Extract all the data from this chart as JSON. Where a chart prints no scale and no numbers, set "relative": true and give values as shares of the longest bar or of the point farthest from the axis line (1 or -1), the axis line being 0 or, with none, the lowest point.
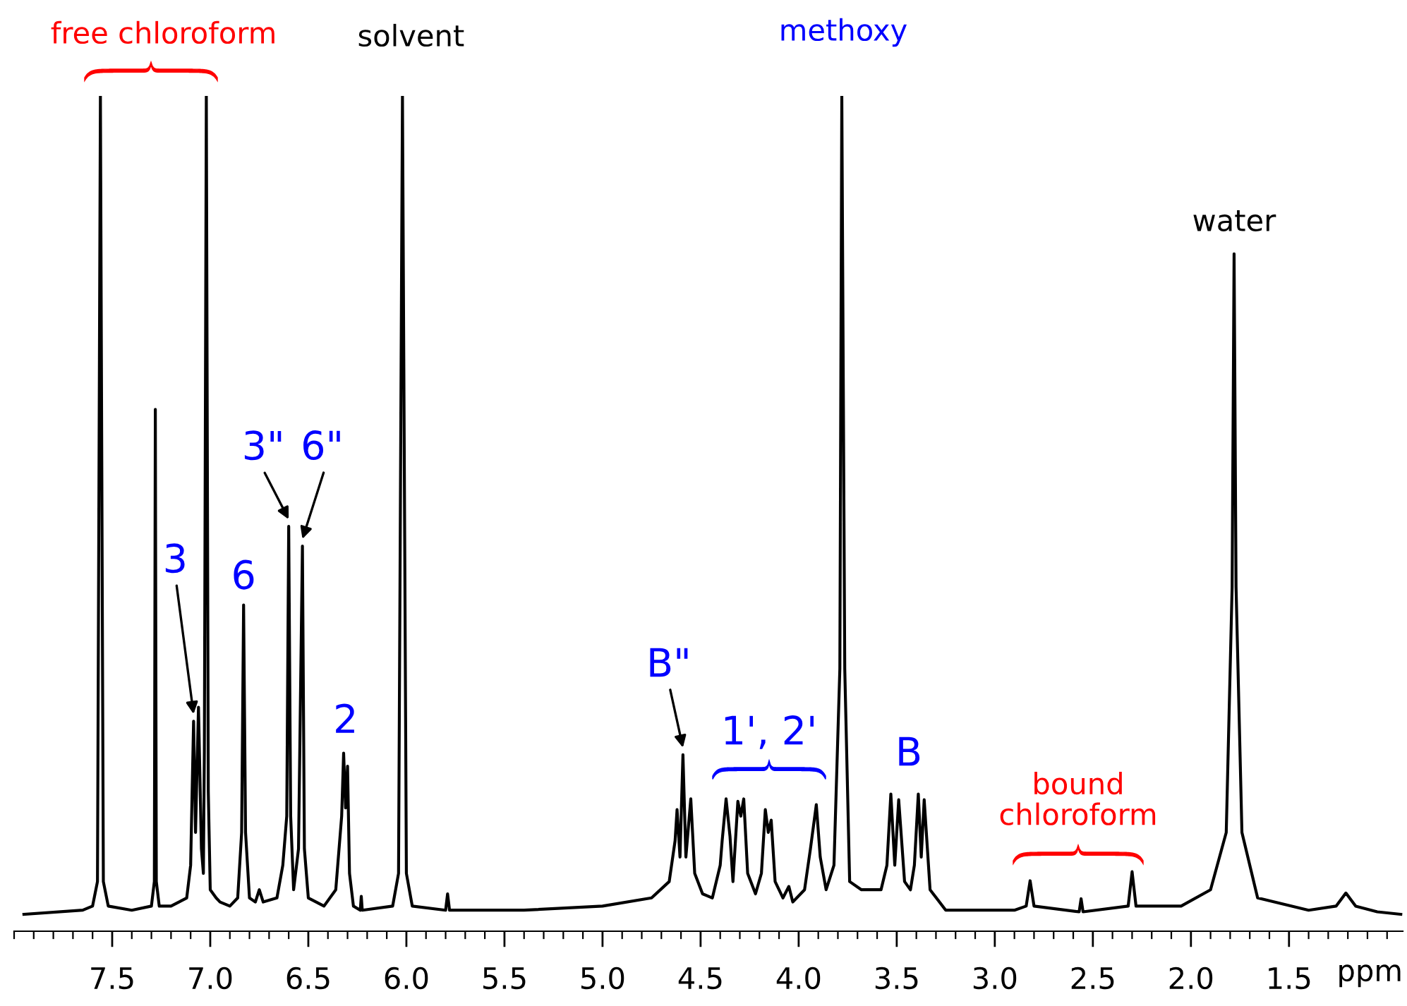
{
  "chart_data": {
    "type": "line",
    "relative": true,
    "xlabel": "ppm",
    "x": [
      7.95,
      7.65,
      7.6,
      7.575,
      7.56,
      7.545,
      7.52,
      7.4,
      7.3,
      7.285,
      7.28,
      7.275,
      7.26,
      7.2,
      7.12,
      7.1,
      7.085,
      7.075,
      7.06,
      7.045,
      7.035,
      7.03,
      7.02,
      7.01,
      7.0,
      6.97,
      6.95,
      6.9,
      6.86,
      6.84,
      6.83,
      6.82,
      6.8,
      6.77,
      6.75,
      6.73,
      6.66,
      6.63,
      6.61,
      6.6,
      6.59,
      6.575,
      6.55,
      6.53,
      6.52,
      6.5,
      6.42,
      6.36,
      6.33,
      6.32,
      6.31,
      6.3,
      6.29,
      6.27,
      6.235,
      6.23,
      6.225,
      6.07,
      6.04,
      6.02,
      6.0,
      5.97,
      5.8,
      5.79,
      5.78,
      5.4,
      5.0,
      4.75,
      4.66,
      4.63,
      4.62,
      4.605,
      4.59,
      4.575,
      4.55,
      4.53,
      4.49,
      4.44,
      4.4,
      4.39,
      4.37,
      4.35,
      4.335,
      4.31,
      4.295,
      4.28,
      4.26,
      4.22,
      4.19,
      4.17,
      4.155,
      4.14,
      4.12,
      4.08,
      4.05,
      4.03,
      3.97,
      3.94,
      3.91,
      3.89,
      3.86,
      3.82,
      3.79,
      3.78,
      3.765,
      3.74,
      3.68,
      3.58,
      3.55,
      3.53,
      3.51,
      3.49,
      3.46,
      3.43,
      3.41,
      3.39,
      3.375,
      3.36,
      3.33,
      3.25,
      2.9,
      2.84,
      2.82,
      2.8,
      2.57,
      2.56,
      2.55,
      2.32,
      2.3,
      2.28,
      2.05,
      1.9,
      1.82,
      1.79,
      1.78,
      1.77,
      1.74,
      1.66,
      1.4,
      1.26,
      1.21,
      1.16,
      1.05,
      0.93
    ],
    "series": [
      {
        "color": "#000000",
        "values": [
          0.0,
          0.005,
          0.01,
          0.04,
          1.0,
          0.04,
          0.01,
          0.005,
          0.01,
          0.04,
          0.617,
          0.04,
          0.01,
          0.01,
          0.02,
          0.06,
          0.236,
          0.1,
          0.253,
          0.08,
          0.05,
          0.2,
          1.0,
          0.15,
          0.03,
          0.02,
          0.015,
          0.01,
          0.02,
          0.1,
          0.378,
          0.1,
          0.02,
          0.015,
          0.03,
          0.015,
          0.02,
          0.06,
          0.12,
          0.474,
          0.12,
          0.03,
          0.08,
          0.45,
          0.08,
          0.02,
          0.01,
          0.03,
          0.12,
          0.197,
          0.13,
          0.181,
          0.05,
          0.01,
          0.005,
          0.022,
          0.005,
          0.01,
          0.05,
          1.0,
          0.05,
          0.01,
          0.005,
          0.025,
          0.005,
          0.005,
          0.01,
          0.02,
          0.04,
          0.09,
          0.128,
          0.07,
          0.195,
          0.07,
          0.141,
          0.05,
          0.025,
          0.02,
          0.06,
          0.09,
          0.141,
          0.095,
          0.04,
          0.138,
          0.12,
          0.141,
          0.05,
          0.025,
          0.05,
          0.128,
          0.1,
          0.115,
          0.04,
          0.02,
          0.034,
          0.015,
          0.03,
          0.08,
          0.134,
          0.07,
          0.03,
          0.06,
          0.3,
          1.0,
          0.3,
          0.04,
          0.03,
          0.03,
          0.06,
          0.147,
          0.06,
          0.14,
          0.04,
          0.03,
          0.06,
          0.147,
          0.07,
          0.14,
          0.03,
          0.005,
          0.005,
          0.01,
          0.041,
          0.01,
          0.003,
          0.019,
          0.003,
          0.01,
          0.052,
          0.01,
          0.01,
          0.03,
          0.1,
          0.4,
          0.807,
          0.4,
          0.1,
          0.02,
          0.005,
          0.01,
          0.026,
          0.01,
          0.003,
          0.0
        ]
      }
    ],
    "xlim": [
      8.0,
      0.92
    ],
    "xticks": [
      7.5,
      {
        "value": 7,
        "label": "7.0"
      },
      6.5,
      {
        "value": 6,
        "label": "6.0"
      },
      5.5,
      {
        "value": 5,
        "label": "5.0"
      },
      4.5,
      {
        "value": 4,
        "label": "4.0"
      },
      3.5,
      {
        "value": 3,
        "label": "3.0"
      },
      2.5,
      {
        "value": 2,
        "label": "2.0"
      },
      1.5
    ],
    "grid": false,
    "legend": false,
    "marker": "none",
    "line_style": "solid",
    "annotations": [
      "free chloroform",
      {
        "text": "solvent",
        "x": 6.02,
        "y": 1.0
      },
      {
        "text": "methoxy",
        "x": 3.78,
        "y": 1.0
      },
      {
        "text": "water",
        "x": 1.78,
        "y": 0.807
      },
      {
        "text": "3",
        "x": 7.085,
        "y": 0.236
      },
      {
        "text": "6",
        "x": 6.83,
        "y": 0.378
      },
      {
        "text": "3\"",
        "x": 6.6,
        "y": 0.474
      },
      {
        "text": "6\"",
        "x": 6.53,
        "y": 0.45
      },
      {
        "text": "2",
        "x": 6.31,
        "y": 0.197
      },
      {
        "text": "B\"",
        "x": 4.59,
        "y": 0.195
      },
      "1', 2'",
      "B",
      "bound\nchloroform"
    ]
  }
}
